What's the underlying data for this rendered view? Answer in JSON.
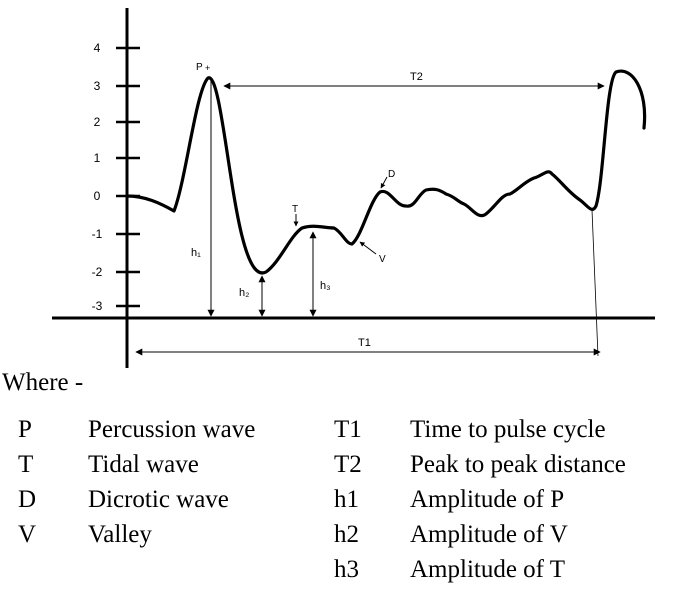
{
  "diagram": {
    "y_ticks": [
      "4",
      "3",
      "2",
      "1",
      "0",
      "-1",
      "-2",
      "-3"
    ],
    "markers": {
      "P": "P",
      "T": "T",
      "D": "D",
      "V": "V",
      "h1": "h₁",
      "h2": "h₂",
      "h3": "h₃",
      "T1": "T1",
      "T2": "T2"
    }
  },
  "legend": {
    "title": "Where -",
    "left": [
      {
        "symbol": "P",
        "meaning": "Percussion wave"
      },
      {
        "symbol": "T",
        "meaning": "Tidal wave"
      },
      {
        "symbol": "D",
        "meaning": "Dicrotic wave"
      },
      {
        "symbol": "V",
        "meaning": "Valley"
      }
    ],
    "right": [
      {
        "symbol": "T1",
        "meaning": "Time to pulse cycle"
      },
      {
        "symbol": "T2",
        "meaning": "Peak to peak distance"
      },
      {
        "symbol": "h1",
        "meaning": "Amplitude of P"
      },
      {
        "symbol": "h2",
        "meaning": "Amplitude of V"
      },
      {
        "symbol": "h3",
        "meaning": "Amplitude of T"
      }
    ]
  }
}
